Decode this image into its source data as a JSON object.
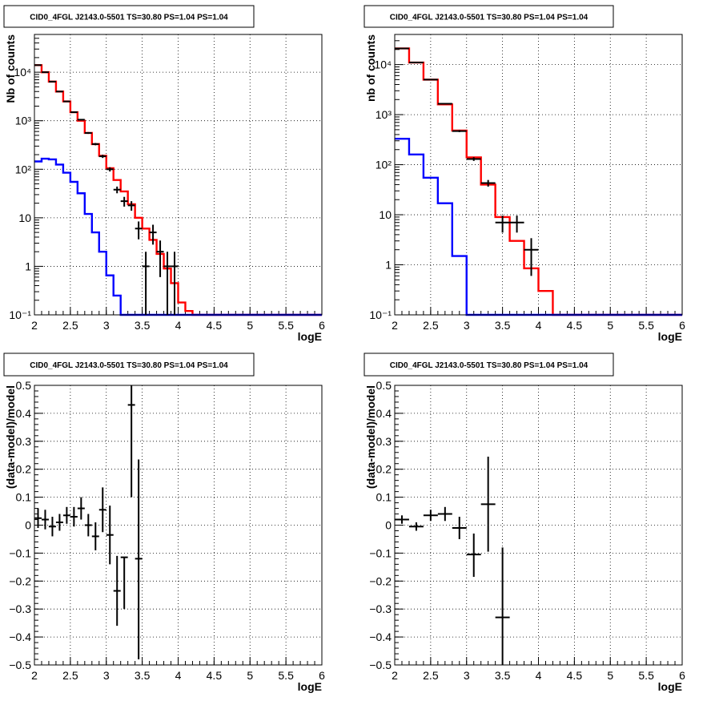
{
  "chart_data": [
    {
      "type": "histogram",
      "title": "CID0_4FGL J2143.0-5501 TS=30.80 PS=1.04 PS=1.04",
      "xlabel": "logE",
      "ylabel": "Nb of counts",
      "xlim": [
        2,
        6
      ],
      "ylim": [
        0.1,
        60000
      ],
      "yscale": "log",
      "xticks": [
        "2",
        "2.5",
        "3",
        "3.5",
        "4",
        "4.5",
        "5",
        "5.5",
        "6"
      ],
      "yticks": [
        "10⁻¹",
        "1",
        "10",
        "10²",
        "10³",
        "10⁴"
      ],
      "grid": true,
      "bin_edges": [
        2.0,
        2.1,
        2.2,
        2.3,
        2.4,
        2.5,
        2.6,
        2.7,
        2.8,
        2.9,
        3.0,
        3.1,
        3.2,
        3.3,
        3.4,
        3.5,
        3.6,
        3.7,
        3.8,
        3.9,
        4.0,
        4.1,
        4.2,
        4.3,
        4.4,
        4.5,
        4.6,
        4.7,
        4.8,
        4.9,
        5.0,
        5.1,
        5.2,
        5.3,
        5.4,
        5.5,
        5.6,
        5.7,
        5.8,
        5.9,
        6.0
      ],
      "series": [
        {
          "color": "#ff0000",
          "style": "step",
          "values": [
            14000,
            10000,
            6400,
            4000,
            2500,
            1500,
            1000,
            560,
            330,
            190,
            105,
            60,
            35,
            19,
            10,
            6,
            3.5,
            1.8,
            0.9,
            0.45,
            0.18,
            0.12,
            0.1,
            0.1,
            0.1,
            0.1,
            0.1,
            0.1,
            0.1,
            0.1,
            0.1,
            0.1,
            0.1,
            0.1,
            0.1,
            0.1,
            0.1,
            0.1,
            0.1,
            0.1
          ]
        },
        {
          "color": "#0000ff",
          "style": "step",
          "values": [
            145,
            165,
            160,
            125,
            85,
            55,
            32,
            12,
            5,
            2,
            0.65,
            0.25,
            0.1,
            0.1,
            0.1,
            0.1,
            0.1,
            0.1,
            0.1,
            0.1,
            0.1,
            0.1,
            0.1,
            0.1,
            0.1,
            0.1,
            0.1,
            0.1,
            0.1,
            0.1,
            0.1,
            0.1,
            0.1,
            0.1,
            0.1,
            0.1,
            0.1,
            0.1,
            0.1,
            0.1
          ]
        },
        {
          "color": "#000000",
          "style": "errorbar",
          "points": [
            {
              "x": 2.05,
              "y": 14000,
              "lo": 13900,
              "hi": 14100
            },
            {
              "x": 2.15,
              "y": 10000,
              "lo": 9900,
              "hi": 10100
            },
            {
              "x": 2.25,
              "y": 6400,
              "lo": 6300,
              "hi": 6500
            },
            {
              "x": 2.35,
              "y": 4000,
              "lo": 3930,
              "hi": 4070
            },
            {
              "x": 2.45,
              "y": 2500,
              "lo": 2450,
              "hi": 2550
            },
            {
              "x": 2.55,
              "y": 1500,
              "lo": 1460,
              "hi": 1540
            },
            {
              "x": 2.65,
              "y": 1050,
              "lo": 1020,
              "hi": 1080
            },
            {
              "x": 2.75,
              "y": 560,
              "lo": 536,
              "hi": 584
            },
            {
              "x": 2.85,
              "y": 330,
              "lo": 312,
              "hi": 348
            },
            {
              "x": 2.95,
              "y": 185,
              "lo": 171,
              "hi": 199
            },
            {
              "x": 3.05,
              "y": 100,
              "lo": 90,
              "hi": 110
            },
            {
              "x": 3.15,
              "y": 38,
              "lo": 32,
              "hi": 44
            },
            {
              "x": 3.25,
              "y": 22,
              "lo": 17,
              "hi": 27
            },
            {
              "x": 3.35,
              "y": 18,
              "lo": 14,
              "hi": 22
            },
            {
              "x": 3.45,
              "y": 6,
              "lo": 3.6,
              "hi": 8.4
            },
            {
              "x": 3.55,
              "y": 1,
              "lo": 0.1,
              "hi": 2
            },
            {
              "x": 3.65,
              "y": 5,
              "lo": 2.8,
              "hi": 7.2
            },
            {
              "x": 3.75,
              "y": 2,
              "lo": 0.6,
              "hi": 3.4
            },
            {
              "x": 3.85,
              "y": 1,
              "lo": 0.1,
              "hi": 2
            },
            {
              "x": 3.95,
              "y": 1,
              "lo": 0.1,
              "hi": 2
            }
          ]
        }
      ]
    },
    {
      "type": "histogram",
      "title": "CID0_4FGL J2143.0-5501 TS=30.80 PS=1.04 PS=1.04",
      "xlabel": "logE",
      "ylabel": "nb of counts",
      "xlim": [
        2,
        6
      ],
      "ylim": [
        0.1,
        40000
      ],
      "yscale": "log",
      "xticks": [
        "2",
        "2.5",
        "3",
        "3.5",
        "4",
        "4.5",
        "5",
        "5.5",
        "6"
      ],
      "yticks": [
        "10⁻¹",
        "1",
        "10",
        "10²",
        "10³",
        "10⁴"
      ],
      "grid": true,
      "bin_edges": [
        2.0,
        2.2,
        2.4,
        2.6,
        2.8,
        3.0,
        3.2,
        3.4,
        3.6,
        3.8,
        4.0,
        4.2,
        4.4,
        4.6,
        4.8,
        5.0,
        5.2,
        5.4,
        5.6,
        5.8,
        6.0
      ],
      "series": [
        {
          "color": "#ff0000",
          "style": "step",
          "values": [
            21000,
            11000,
            5000,
            1600,
            480,
            140,
            40,
            9,
            3,
            0.85,
            0.3,
            0.1,
            0.1,
            0.1,
            0.1,
            0.1,
            0.1,
            0.1,
            0.1,
            0.1
          ]
        },
        {
          "color": "#0000ff",
          "style": "step",
          "values": [
            330,
            160,
            55,
            17,
            1.5,
            0.1,
            0.1,
            0.1,
            0.1,
            0.1,
            0.1,
            0.1,
            0.1,
            0.1,
            0.1,
            0.1,
            0.1,
            0.1,
            0.1,
            0.1
          ]
        },
        {
          "color": "#000000",
          "style": "errorbar",
          "points": [
            {
              "x": 2.1,
              "y": 21000,
              "lo": 20850,
              "hi": 21150
            },
            {
              "x": 2.3,
              "y": 11000,
              "lo": 10900,
              "hi": 11100
            },
            {
              "x": 2.5,
              "y": 5000,
              "lo": 4930,
              "hi": 5070
            },
            {
              "x": 2.7,
              "y": 1650,
              "lo": 1610,
              "hi": 1690
            },
            {
              "x": 2.9,
              "y": 470,
              "lo": 448,
              "hi": 492
            },
            {
              "x": 3.1,
              "y": 130,
              "lo": 119,
              "hi": 141
            },
            {
              "x": 3.3,
              "y": 43,
              "lo": 36.5,
              "hi": 49.5
            },
            {
              "x": 3.5,
              "y": 7,
              "lo": 4.4,
              "hi": 9.6
            },
            {
              "x": 3.7,
              "y": 7,
              "lo": 4.4,
              "hi": 9.6
            },
            {
              "x": 3.9,
              "y": 2,
              "lo": 0.6,
              "hi": 3.4
            }
          ]
        }
      ]
    },
    {
      "type": "scatter",
      "title": "CID0_4FGL J2143.0-5501 TS=30.80 PS=1.04 PS=1.04",
      "xlabel": "logE",
      "ylabel": "(data-model)/model",
      "xlim": [
        2,
        6
      ],
      "ylim": [
        -0.5,
        0.5
      ],
      "yscale": "linear",
      "xticks": [
        "2",
        "2.5",
        "3",
        "3.5",
        "4",
        "4.5",
        "5",
        "5.5",
        "6"
      ],
      "yticks": [
        "−0.5",
        "−0.4",
        "−0.3",
        "−0.2",
        "−0.1",
        "0",
        "0.1",
        "0.2",
        "0.3",
        "0.4",
        "0.5"
      ],
      "grid": true,
      "series": [
        {
          "color": "#000000",
          "style": "errorbar",
          "points": [
            {
              "x": 2.05,
              "y": 0.025,
              "lo": -0.01,
              "hi": 0.06
            },
            {
              "x": 2.15,
              "y": 0.02,
              "lo": -0.015,
              "hi": 0.055
            },
            {
              "x": 2.25,
              "y": -0.005,
              "lo": -0.04,
              "hi": 0.03
            },
            {
              "x": 2.35,
              "y": 0.01,
              "lo": -0.02,
              "hi": 0.04
            },
            {
              "x": 2.45,
              "y": 0.035,
              "lo": 0.005,
              "hi": 0.065
            },
            {
              "x": 2.55,
              "y": 0.03,
              "lo": -0.005,
              "hi": 0.065
            },
            {
              "x": 2.65,
              "y": 0.06,
              "lo": 0.02,
              "hi": 0.1
            },
            {
              "x": 2.75,
              "y": 0.0,
              "lo": -0.04,
              "hi": 0.04
            },
            {
              "x": 2.85,
              "y": -0.04,
              "lo": -0.09,
              "hi": 0.01
            },
            {
              "x": 2.95,
              "y": 0.055,
              "lo": -0.025,
              "hi": 0.135
            },
            {
              "x": 3.05,
              "y": -0.035,
              "lo": -0.14,
              "hi": 0.07
            },
            {
              "x": 3.15,
              "y": -0.235,
              "lo": -0.36,
              "hi": -0.11
            },
            {
              "x": 3.25,
              "y": -0.115,
              "lo": -0.3,
              "hi": -0.115
            },
            {
              "x": 3.35,
              "y": 0.43,
              "lo": 0.1,
              "hi": 0.5
            },
            {
              "x": 3.45,
              "y": -0.12,
              "lo": -0.48,
              "hi": 0.235
            }
          ]
        }
      ]
    },
    {
      "type": "scatter",
      "title": "CID0_4FGL J2143.0-5501 TS=30.80 PS=1.04 PS=1.04",
      "xlabel": "logE",
      "ylabel": "(data-model)/model",
      "xlim": [
        2,
        6
      ],
      "ylim": [
        -0.5,
        0.5
      ],
      "yscale": "linear",
      "xticks": [
        "2",
        "2.5",
        "3",
        "3.5",
        "4",
        "4.5",
        "5",
        "5.5",
        "6"
      ],
      "yticks": [
        "−0.5",
        "−0.4",
        "−0.3",
        "−0.2",
        "−0.1",
        "0",
        "0.1",
        "0.2",
        "0.3",
        "0.4",
        "0.5"
      ],
      "grid": true,
      "series": [
        {
          "color": "#000000",
          "style": "errorbar",
          "points": [
            {
              "x": 2.1,
              "y": 0.02,
              "lo": 0.005,
              "hi": 0.035
            },
            {
              "x": 2.3,
              "y": -0.005,
              "lo": -0.02,
              "hi": 0.01
            },
            {
              "x": 2.5,
              "y": 0.035,
              "lo": 0.015,
              "hi": 0.055
            },
            {
              "x": 2.7,
              "y": 0.04,
              "lo": 0.015,
              "hi": 0.065
            },
            {
              "x": 2.9,
              "y": -0.01,
              "lo": -0.05,
              "hi": 0.03
            },
            {
              "x": 3.1,
              "y": -0.105,
              "lo": -0.185,
              "hi": -0.03
            },
            {
              "x": 3.3,
              "y": 0.075,
              "lo": -0.095,
              "hi": 0.245
            },
            {
              "x": 3.5,
              "y": -0.33,
              "lo": -0.5,
              "hi": -0.08
            }
          ]
        }
      ]
    }
  ]
}
